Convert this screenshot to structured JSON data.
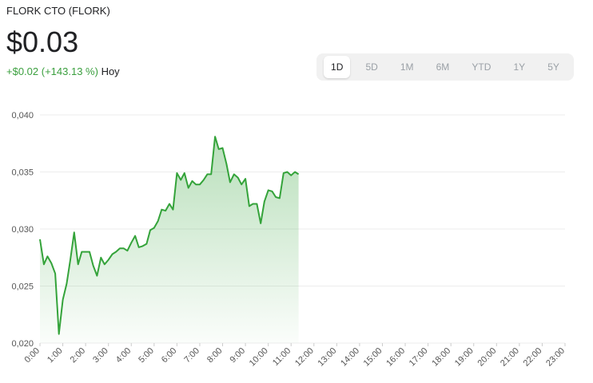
{
  "header": {
    "title": "FLORK CTO (FLORK)",
    "price": "$0.03",
    "change": "+$0.02",
    "change_percent": "(+143.13 %)",
    "period": "Hoy"
  },
  "ranges": {
    "buttons": [
      "1D",
      "5D",
      "1M",
      "6M",
      "YTD",
      "1Y",
      "5Y"
    ],
    "selected": 0
  },
  "chart_data": {
    "type": "line",
    "x": [
      0,
      0.17,
      0.33,
      0.5,
      0.67,
      0.83,
      1,
      1.17,
      1.33,
      1.5,
      1.67,
      1.83,
      2,
      2.17,
      2.33,
      2.5,
      2.67,
      2.83,
      3,
      3.17,
      3.33,
      3.5,
      3.67,
      3.83,
      4,
      4.17,
      4.33,
      4.5,
      4.67,
      4.83,
      5,
      5.17,
      5.33,
      5.5,
      5.67,
      5.83,
      6,
      6.17,
      6.33,
      6.5,
      6.67,
      6.83,
      7,
      7.17,
      7.33,
      7.5,
      7.67,
      7.83,
      8,
      8.17,
      8.33,
      8.5,
      8.67,
      8.83,
      9,
      9.17,
      9.33,
      9.5,
      9.67,
      9.83,
      10,
      10.17,
      10.33,
      10.5,
      10.67,
      10.83,
      11,
      11.17,
      11.33
    ],
    "series": [
      {
        "color": "#34a33a",
        "values": [
          0.0291,
          0.0269,
          0.0276,
          0.027,
          0.0261,
          0.0208,
          0.0238,
          0.0252,
          0.0273,
          0.0297,
          0.0269,
          0.028,
          0.028,
          0.028,
          0.0268,
          0.0259,
          0.0275,
          0.0269,
          0.0273,
          0.0278,
          0.028,
          0.0283,
          0.0283,
          0.0281,
          0.0288,
          0.0294,
          0.0284,
          0.0285,
          0.0287,
          0.0299,
          0.0301,
          0.0307,
          0.0317,
          0.0316,
          0.0322,
          0.0317,
          0.0349,
          0.0343,
          0.0349,
          0.0336,
          0.0342,
          0.0339,
          0.0339,
          0.0343,
          0.0348,
          0.0348,
          0.0381,
          0.037,
          0.0371,
          0.0357,
          0.0341,
          0.0348,
          0.0345,
          0.0339,
          0.0344,
          0.032,
          0.0322,
          0.0322,
          0.0305,
          0.0324,
          0.0334,
          0.0333,
          0.0328,
          0.0327,
          0.0349,
          0.035,
          0.0347,
          0.035,
          0.0348
        ]
      }
    ],
    "xlim": [
      0,
      23
    ],
    "xticks": [
      {
        "value": 0,
        "label": "0:00"
      },
      {
        "value": 1,
        "label": "1:00"
      },
      {
        "value": 2,
        "label": "2:00"
      },
      {
        "value": 3,
        "label": "3:00"
      },
      {
        "value": 4,
        "label": "4:00"
      },
      {
        "value": 5,
        "label": "5:00"
      },
      {
        "value": 6,
        "label": "6:00"
      },
      {
        "value": 7,
        "label": "7:00"
      },
      {
        "value": 8,
        "label": "8:00"
      },
      {
        "value": 9,
        "label": "9:00"
      },
      {
        "value": 10,
        "label": "10:00"
      },
      {
        "value": 11,
        "label": "11:00"
      },
      {
        "value": 12,
        "label": "12:00"
      },
      {
        "value": 13,
        "label": "13:00"
      },
      {
        "value": 14,
        "label": "14:00"
      },
      {
        "value": 15,
        "label": "15:00"
      },
      {
        "value": 16,
        "label": "16:00"
      },
      {
        "value": 17,
        "label": "17:00"
      },
      {
        "value": 18,
        "label": "18:00"
      },
      {
        "value": 19,
        "label": "19:00"
      },
      {
        "value": 20,
        "label": "20:00"
      },
      {
        "value": 21,
        "label": "21:00"
      },
      {
        "value": 22,
        "label": "22:00"
      },
      {
        "value": 23,
        "label": "23:00"
      }
    ],
    "ylim": [
      0.02,
      0.04
    ],
    "yticks": [
      {
        "value": 0.02,
        "label": "0,020"
      },
      {
        "value": 0.025,
        "label": "0,025"
      },
      {
        "value": 0.03,
        "label": "0,030"
      },
      {
        "value": 0.035,
        "label": "0,035"
      },
      {
        "value": 0.04,
        "label": "0,040"
      }
    ],
    "grid": true
  }
}
